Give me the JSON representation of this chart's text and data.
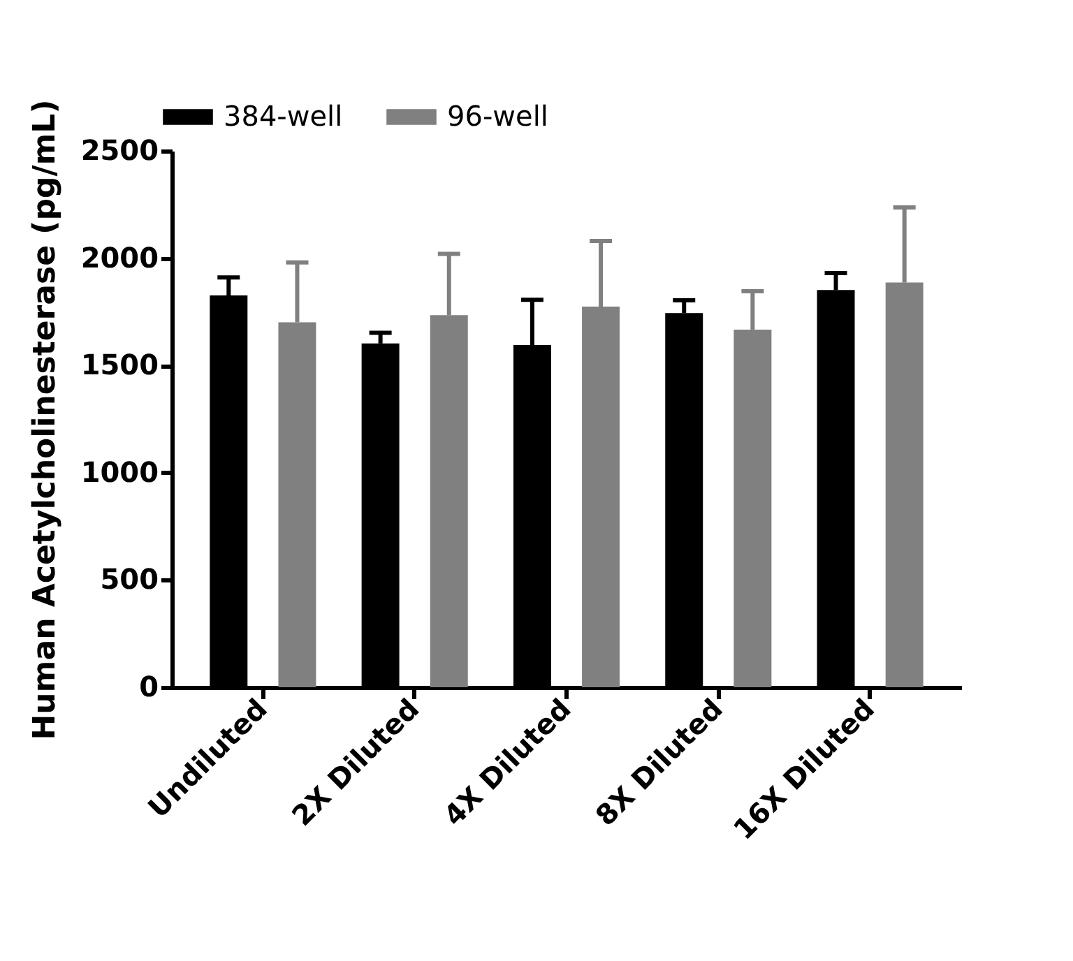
{
  "chart_data": {
    "type": "bar",
    "ylabel": "Human Acetylcholinesterase (pg/mL)",
    "categories": [
      "Undiluted",
      "2X Diluted",
      "4X Diluted",
      "8X Diluted",
      "16X Diluted"
    ],
    "series": [
      {
        "name": "384-well",
        "color": "#000000",
        "values": [
          1826,
          1602,
          1595,
          1744,
          1851
        ],
        "errors": [
          [
            1826,
            1910
          ],
          [
            1602,
            1652
          ],
          [
            1595,
            1806
          ],
          [
            1744,
            1803
          ],
          [
            1851,
            1930
          ]
        ]
      },
      {
        "name": "96-well",
        "color": "#808080",
        "values": [
          1701,
          1734,
          1774,
          1667,
          1886
        ],
        "errors": [
          [
            1701,
            1980
          ],
          [
            1734,
            2020
          ],
          [
            1774,
            2080
          ],
          [
            1667,
            1846
          ],
          [
            1886,
            2236
          ]
        ]
      }
    ],
    "ylim": [
      0,
      2500
    ],
    "yticks": [
      0,
      500,
      1000,
      1500,
      2000,
      2500
    ],
    "grid": false,
    "legend": "top left"
  }
}
